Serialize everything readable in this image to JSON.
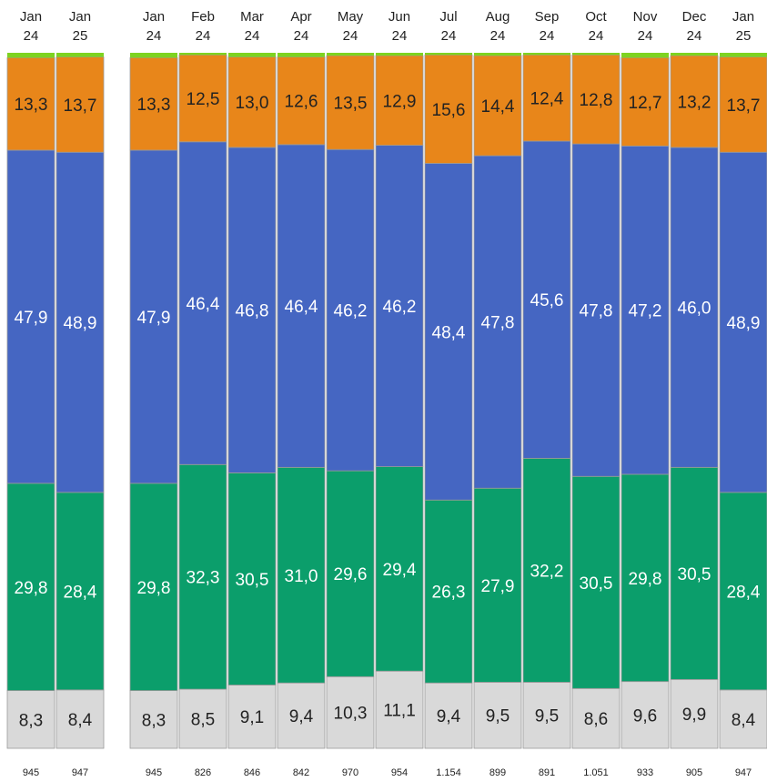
{
  "chart_data": {
    "type": "bar",
    "stacked": "100%",
    "categories": [
      {
        "month": "Jan",
        "year": "24"
      },
      {
        "month": "Jan",
        "year": "25"
      },
      {
        "month": "Jan",
        "year": "24"
      },
      {
        "month": "Feb",
        "year": "24"
      },
      {
        "month": "Mar",
        "year": "24"
      },
      {
        "month": "Apr",
        "year": "24"
      },
      {
        "month": "May",
        "year": "24"
      },
      {
        "month": "Jun",
        "year": "24"
      },
      {
        "month": "Jul",
        "year": "24"
      },
      {
        "month": "Aug",
        "year": "24"
      },
      {
        "month": "Sep",
        "year": "24"
      },
      {
        "month": "Oct",
        "year": "24"
      },
      {
        "month": "Nov",
        "year": "24"
      },
      {
        "month": "Dec",
        "year": "24"
      },
      {
        "month": "Jan",
        "year": "25"
      }
    ],
    "groups": [
      [
        0,
        1
      ],
      [
        2,
        3,
        4,
        5,
        6,
        7,
        8,
        9,
        10,
        11,
        12,
        13,
        14
      ]
    ],
    "series": [
      {
        "color": "#d9d9d9",
        "label_color": "#222222",
        "values": [
          8.3,
          8.4,
          8.3,
          8.5,
          9.1,
          9.4,
          10.3,
          11.1,
          9.4,
          9.5,
          9.5,
          8.6,
          9.6,
          9.9,
          8.4
        ],
        "labels": [
          "8,3",
          "8,4",
          "8,3",
          "8,5",
          "9,1",
          "9,4",
          "10,3",
          "11,1",
          "9,4",
          "9,5",
          "9,5",
          "8,6",
          "9,6",
          "9,9",
          "8,4"
        ]
      },
      {
        "color": "#0b9e6b",
        "label_color": "#ffffff",
        "values": [
          29.8,
          28.4,
          29.8,
          32.3,
          30.5,
          31.0,
          29.6,
          29.4,
          26.3,
          27.9,
          32.2,
          30.5,
          29.8,
          30.5,
          28.4
        ],
        "labels": [
          "29,8",
          "28,4",
          "29,8",
          "32,3",
          "30,5",
          "31,0",
          "29,6",
          "29,4",
          "26,3",
          "27,9",
          "32,2",
          "30,5",
          "29,8",
          "30,5",
          "28,4"
        ]
      },
      {
        "color": "#4566c2",
        "label_color": "#ffffff",
        "values": [
          47.9,
          48.9,
          47.9,
          46.4,
          46.8,
          46.4,
          46.2,
          46.2,
          48.4,
          47.8,
          45.6,
          47.8,
          47.2,
          46.0,
          48.9
        ],
        "labels": [
          "47,9",
          "48,9",
          "47,9",
          "46,4",
          "46,8",
          "46,4",
          "46,2",
          "46,2",
          "48,4",
          "47,8",
          "45,6",
          "47,8",
          "47,2",
          "46,0",
          "48,9"
        ]
      },
      {
        "color": "#e8861a",
        "label_color": "#222222",
        "values": [
          13.3,
          13.7,
          13.3,
          12.5,
          13.0,
          12.6,
          13.5,
          12.9,
          15.6,
          14.4,
          12.4,
          12.8,
          12.7,
          13.2,
          13.7
        ],
        "labels": [
          "13,3",
          "13,7",
          "13,3",
          "12,5",
          "13,0",
          "12,6",
          "13,5",
          "12,9",
          "15,6",
          "14,4",
          "12,4",
          "12,8",
          "12,7",
          "13,2",
          "13,7"
        ]
      },
      {
        "color": "#7ed321",
        "label_color": "#222222",
        "values": [
          0.7,
          0.6,
          0.7,
          0.3,
          0.6,
          0.6,
          0.4,
          0.4,
          0.3,
          0.4,
          0.3,
          0.3,
          0.7,
          0.4,
          0.6
        ],
        "labels": []
      }
    ],
    "totals": [
      "945",
      "947",
      "945",
      "826",
      "846",
      "842",
      "970",
      "954",
      "1.154",
      "899",
      "891",
      "1.051",
      "933",
      "905",
      "947"
    ],
    "ylim": [
      0,
      100
    ],
    "grid": false,
    "legend": "none"
  }
}
